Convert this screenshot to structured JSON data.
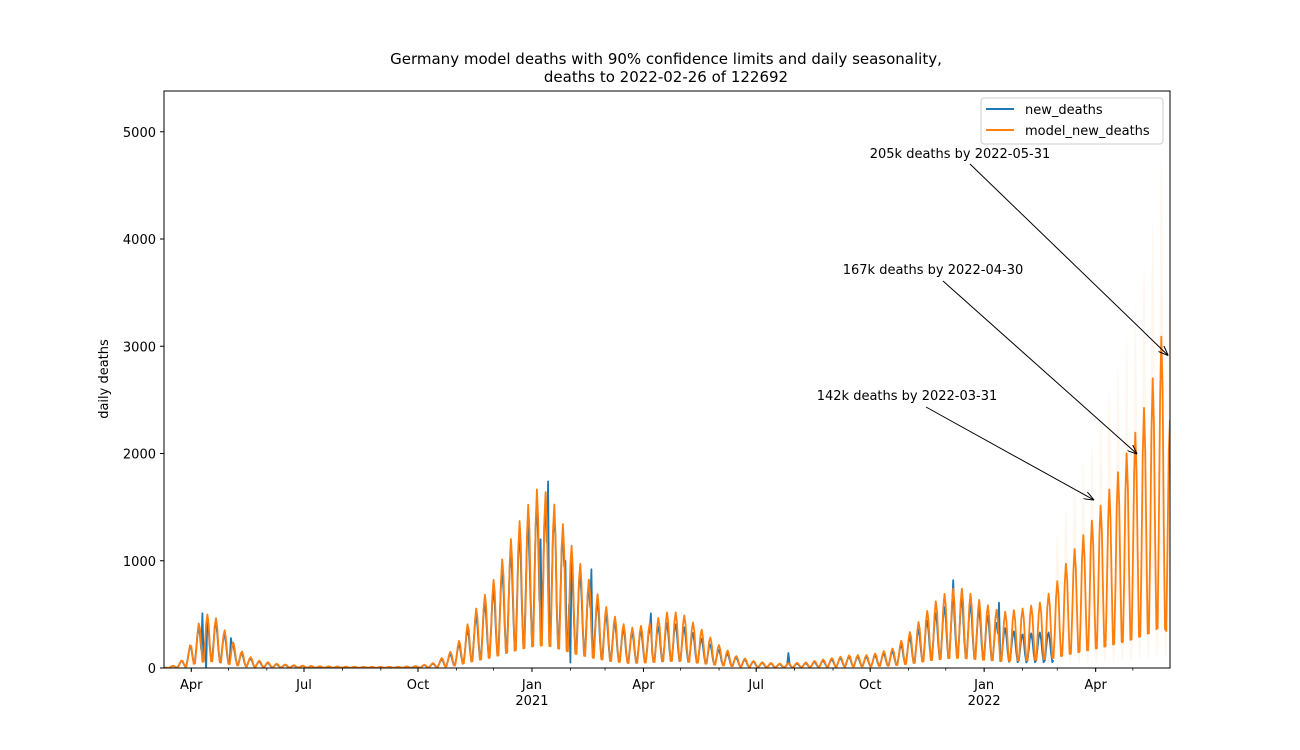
{
  "chart_data": {
    "type": "line",
    "title": "Germany model deaths with 90% confidence limits and daily seasonality,",
    "subtitle": "deaths to 2022-02-26 of 122692",
    "ylabel": "daily deaths",
    "xlabel": "",
    "xlim": [
      "2020-03-10",
      "2022-05-31"
    ],
    "ylim": [
      0,
      5380
    ],
    "y_ticks": [
      0,
      1000,
      2000,
      3000,
      4000,
      5000
    ],
    "x_ticks": [
      {
        "date": "2020-04-01",
        "label": "Apr",
        "year_label": ""
      },
      {
        "date": "2020-07-01",
        "label": "Jul",
        "year_label": ""
      },
      {
        "date": "2020-10-01",
        "label": "Oct",
        "year_label": ""
      },
      {
        "date": "2021-01-01",
        "label": "Jan",
        "year_label": "2021"
      },
      {
        "date": "2021-04-01",
        "label": "Apr",
        "year_label": ""
      },
      {
        "date": "2021-07-01",
        "label": "Jul",
        "year_label": ""
      },
      {
        "date": "2021-10-01",
        "label": "Oct",
        "year_label": ""
      },
      {
        "date": "2022-01-01",
        "label": "Jan",
        "year_label": "2022"
      },
      {
        "date": "2022-04-01",
        "label": "Apr",
        "year_label": ""
      }
    ],
    "grid": false,
    "legend_position": "top-right",
    "series": [
      {
        "name": "new_deaths",
        "color": "#1f77b4",
        "x_start": "2020-03-10",
        "x_end": "2022-02-26",
        "points": [
          [
            "2020-03-10",
            0
          ],
          [
            "2020-03-20",
            15
          ],
          [
            "2020-03-28",
            60
          ],
          [
            "2020-04-02",
            150
          ],
          [
            "2020-04-08",
            230
          ],
          [
            "2020-04-14",
            270
          ],
          [
            "2020-04-20",
            250
          ],
          [
            "2020-04-28",
            180
          ],
          [
            "2020-05-06",
            110
          ],
          [
            "2020-05-15",
            60
          ],
          [
            "2020-05-25",
            35
          ],
          [
            "2020-06-08",
            20
          ],
          [
            "2020-06-25",
            12
          ],
          [
            "2020-07-15",
            8
          ],
          [
            "2020-08-15",
            5
          ],
          [
            "2020-09-15",
            6
          ],
          [
            "2020-10-01",
            10
          ],
          [
            "2020-10-15",
            25
          ],
          [
            "2020-10-31",
            90
          ],
          [
            "2020-11-15",
            260
          ],
          [
            "2020-11-30",
            400
          ],
          [
            "2020-12-15",
            620
          ],
          [
            "2020-12-25",
            750
          ],
          [
            "2021-01-05",
            870
          ],
          [
            "2021-01-15",
            850
          ],
          [
            "2021-01-25",
            720
          ],
          [
            "2021-02-05",
            550
          ],
          [
            "2021-02-20",
            380
          ],
          [
            "2021-03-05",
            260
          ],
          [
            "2021-03-20",
            190
          ],
          [
            "2021-04-05",
            200
          ],
          [
            "2021-04-20",
            240
          ],
          [
            "2021-05-01",
            230
          ],
          [
            "2021-05-15",
            170
          ],
          [
            "2021-05-31",
            100
          ],
          [
            "2021-06-15",
            55
          ],
          [
            "2021-07-01",
            30
          ],
          [
            "2021-07-20",
            20
          ],
          [
            "2021-08-10",
            25
          ],
          [
            "2021-08-31",
            45
          ],
          [
            "2021-09-15",
            60
          ],
          [
            "2021-10-01",
            60
          ],
          [
            "2021-10-20",
            90
          ],
          [
            "2021-11-05",
            180
          ],
          [
            "2021-11-20",
            280
          ],
          [
            "2021-12-05",
            350
          ],
          [
            "2021-12-15",
            360
          ],
          [
            "2021-12-31",
            300
          ],
          [
            "2022-01-15",
            220
          ],
          [
            "2022-02-01",
            180
          ],
          [
            "2022-02-15",
            190
          ],
          [
            "2022-02-26",
            190
          ]
        ],
        "spikes": [
          [
            "2020-04-10",
            510
          ],
          [
            "2020-05-03",
            280
          ],
          [
            "2020-12-30",
            1000
          ],
          [
            "2021-01-08",
            1200
          ],
          [
            "2021-01-14",
            1740
          ],
          [
            "2021-01-20",
            1210
          ],
          [
            "2021-01-28",
            1000
          ],
          [
            "2021-02-18",
            920
          ],
          [
            "2021-04-07",
            510
          ],
          [
            "2021-07-27",
            140
          ],
          [
            "2021-12-07",
            820
          ],
          [
            "2021-12-14",
            720
          ],
          [
            "2022-01-13",
            610
          ]
        ],
        "troughs": [
          [
            "2020-04-13",
            -20
          ],
          [
            "2021-02-01",
            50
          ]
        ]
      },
      {
        "name": "model_new_deaths",
        "color": "#ff7f0e",
        "x_start": "2020-03-10",
        "x_end": "2022-05-31",
        "points": [
          [
            "2020-03-10",
            0
          ],
          [
            "2020-03-20",
            15
          ],
          [
            "2020-03-28",
            60
          ],
          [
            "2020-04-02",
            150
          ],
          [
            "2020-04-08",
            240
          ],
          [
            "2020-04-14",
            270
          ],
          [
            "2020-04-20",
            260
          ],
          [
            "2020-04-28",
            190
          ],
          [
            "2020-05-06",
            120
          ],
          [
            "2020-05-15",
            65
          ],
          [
            "2020-05-25",
            38
          ],
          [
            "2020-06-08",
            22
          ],
          [
            "2020-06-25",
            13
          ],
          [
            "2020-07-15",
            9
          ],
          [
            "2020-08-15",
            6
          ],
          [
            "2020-09-15",
            6
          ],
          [
            "2020-10-01",
            10
          ],
          [
            "2020-10-15",
            27
          ],
          [
            "2020-10-31",
            100
          ],
          [
            "2020-11-15",
            280
          ],
          [
            "2020-11-30",
            430
          ],
          [
            "2020-12-15",
            650
          ],
          [
            "2020-12-25",
            780
          ],
          [
            "2021-01-05",
            900
          ],
          [
            "2021-01-15",
            880
          ],
          [
            "2021-01-25",
            740
          ],
          [
            "2021-02-05",
            570
          ],
          [
            "2021-02-20",
            400
          ],
          [
            "2021-03-05",
            280
          ],
          [
            "2021-03-20",
            200
          ],
          [
            "2021-04-05",
            220
          ],
          [
            "2021-04-20",
            280
          ],
          [
            "2021-05-01",
            280
          ],
          [
            "2021-05-15",
            210
          ],
          [
            "2021-05-31",
            120
          ],
          [
            "2021-06-15",
            60
          ],
          [
            "2021-07-01",
            32
          ],
          [
            "2021-07-20",
            22
          ],
          [
            "2021-08-10",
            28
          ],
          [
            "2021-08-31",
            50
          ],
          [
            "2021-09-15",
            65
          ],
          [
            "2021-10-01",
            65
          ],
          [
            "2021-10-20",
            100
          ],
          [
            "2021-11-05",
            200
          ],
          [
            "2021-11-20",
            320
          ],
          [
            "2021-12-05",
            400
          ],
          [
            "2021-12-15",
            400
          ],
          [
            "2021-12-31",
            330
          ],
          [
            "2022-01-15",
            280
          ],
          [
            "2022-02-01",
            300
          ],
          [
            "2022-02-15",
            330
          ],
          [
            "2022-02-26",
            400
          ],
          [
            "2022-03-10",
            550
          ],
          [
            "2022-03-25",
            700
          ],
          [
            "2022-04-08",
            850
          ],
          [
            "2022-04-20",
            1000
          ],
          [
            "2022-05-01",
            1150
          ],
          [
            "2022-05-15",
            1400
          ],
          [
            "2022-05-25",
            1700
          ],
          [
            "2022-05-31",
            1250
          ]
        ],
        "amplitude_ratio": 0.85,
        "period_days": 7,
        "ci_band_color": "#ff7f0e",
        "ci_upper_ratio": 1.55,
        "ci_lower_ratio": 0.35
      }
    ],
    "annotations": [
      {
        "text": "205k deaths by 2022-05-31",
        "arrow_to_date": "2022-05-29",
        "arrow_to_value": 2920
      },
      {
        "text": "167k deaths by 2022-04-30",
        "arrow_to_date": "2022-05-04",
        "arrow_to_value": 2000
      },
      {
        "text": "142k deaths by 2022-03-31",
        "arrow_to_date": "2022-03-30",
        "arrow_to_value": 1570
      }
    ]
  }
}
